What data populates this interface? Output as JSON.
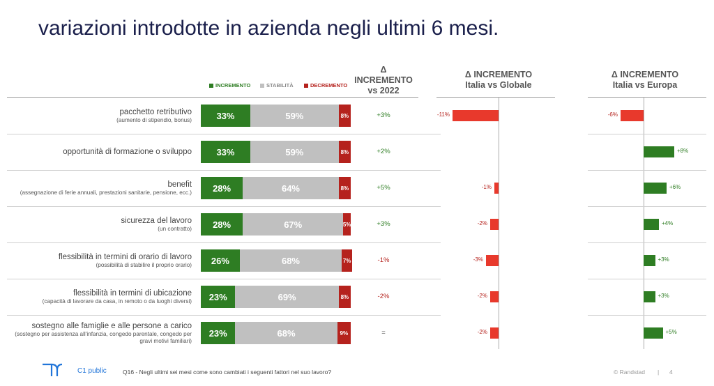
{
  "title": "variazioni introdotte in azienda negli ultimi 6 mesi.",
  "legend": {
    "increment": "INCREMENTO",
    "stability": "STABILITÀ",
    "decrement": "DECREMENTO"
  },
  "headers": {
    "vs2022": [
      "Δ",
      "INCREMENTO",
      "vs 2022"
    ],
    "global": [
      "Δ INCREMENTO",
      "Italia vs Globale"
    ],
    "europe": [
      "Δ INCREMENTO",
      "Italia vs Europa"
    ]
  },
  "colors": {
    "increment": "#2e7d23",
    "stability": "#c0c0c0",
    "decrement": "#b5221d",
    "negative_delta": "#e8392c",
    "positive_delta": "#2e7d23",
    "title": "#1a1f4b"
  },
  "chart_data": [
    {
      "type": "bar",
      "stacked": true,
      "orientation": "horizontal",
      "categories": [
        "pacchetto retributivo",
        "opportunità di formazione o sviluppo",
        "benefit",
        "sicurezza del lavoro",
        "flessibilità in termini di orario di lavoro",
        "flessibilità in termini di ubicazione",
        "sostegno alle famiglie e alle persone a carico"
      ],
      "category_notes": [
        "(aumento di stipendio, bonus)",
        "",
        "(assegnazione di ferie annuali, prestazioni sanitarie, pensione, ecc.)",
        "(un contratto)",
        "(possibilità di stabilire il proprio orario)",
        "(capacità di lavorare da casa, in remoto o da luoghi diversi)",
        "(sostegno per assistenza all'infanzia, congedo parentale, congedo per gravi motivi familiari)"
      ],
      "series": [
        {
          "name": "INCREMENTO",
          "values": [
            33,
            33,
            28,
            28,
            26,
            23,
            23
          ]
        },
        {
          "name": "STABILITÀ",
          "values": [
            59,
            59,
            64,
            67,
            68,
            69,
            68
          ]
        },
        {
          "name": "DECREMENTO",
          "values": [
            8,
            8,
            8,
            5,
            7,
            8,
            9
          ]
        }
      ],
      "value_labels": {
        "INCREMENTO": [
          "33%",
          "33%",
          "28%",
          "28%",
          "26%",
          "23%",
          "23%"
        ],
        "STABILITÀ": [
          "59%",
          "59%",
          "64%",
          "67%",
          "68%",
          "69%",
          "68%"
        ],
        "DECREMENTO": [
          "8%",
          "8%",
          "8%",
          "5%",
          "7%",
          "8%",
          "9%"
        ]
      },
      "xlim": [
        0,
        100
      ]
    },
    {
      "type": "table",
      "title": "Δ INCREMENTO vs 2022",
      "values": [
        "+3%",
        "+2%",
        "+5%",
        "+3%",
        "-1%",
        "-2%",
        "="
      ]
    },
    {
      "type": "bar",
      "orientation": "horizontal",
      "title": "Δ INCREMENTO Italia vs Globale",
      "values": [
        -11,
        null,
        -1,
        -2,
        -3,
        -2,
        -2
      ],
      "labels": [
        "-11%",
        "",
        "-1%",
        "-2%",
        "-3%",
        "-2%",
        "-2%"
      ]
    },
    {
      "type": "bar",
      "orientation": "horizontal",
      "title": "Δ INCREMENTO Italia vs Europa",
      "values": [
        -6,
        8,
        6,
        4,
        3,
        3,
        5
      ],
      "labels": [
        "-6%",
        "+8%",
        "+6%",
        "+4%",
        "+3%",
        "+3%",
        "+5%"
      ]
    }
  ],
  "footer": {
    "classification": "C1 public",
    "question": "Q16 - Negli ultimi sei mesi come sono cambiati i seguenti fattori nel suo lavoro?",
    "copyright": "© Randstad",
    "separator": "|",
    "page": "4"
  }
}
